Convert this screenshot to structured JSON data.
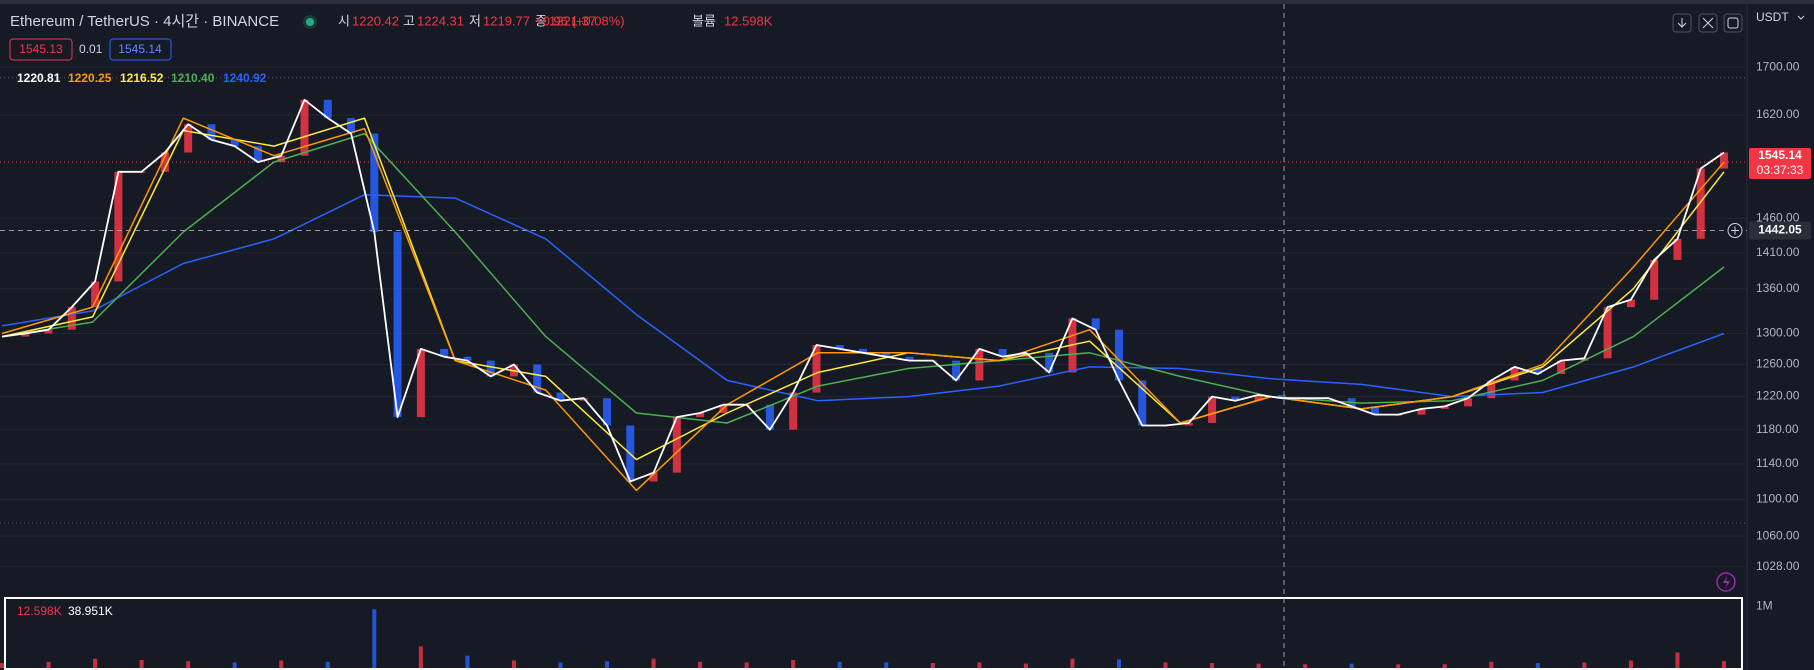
{
  "header": {
    "symbol": "Ethereum / TetherUS · 4시간 · BINANCE",
    "ohlc": [
      {
        "label": "시",
        "value": "1220.42"
      },
      {
        "label": "고",
        "value": "1224.31"
      },
      {
        "label": "저",
        "value": "1219.77"
      },
      {
        "label": "종",
        "value": "1221.37"
      }
    ],
    "change": "+0.96 (+0.08%)",
    "volume_label": "볼륨",
    "volume_value": "12.598K"
  },
  "order_buttons": {
    "sell": "1545.13",
    "spread": "0.01",
    "buy": "1545.14"
  },
  "currency": "USDT",
  "chart_data": [
    {
      "type": "line",
      "log_scale": true,
      "grid": true,
      "ylim": [
        998,
        1808
      ],
      "yticks": [
        {
          "value": 1700,
          "label": "1700.00"
        },
        {
          "value": 1620,
          "label": "1620.00"
        },
        {
          "value": 1460,
          "label": "1460.00"
        },
        {
          "value": 1410,
          "label": "1410.00"
        },
        {
          "value": 1360,
          "label": "1360.00"
        },
        {
          "value": 1300,
          "label": "1300.00"
        },
        {
          "value": 1260,
          "label": "1260.00"
        },
        {
          "value": 1220,
          "label": "1220.00"
        },
        {
          "value": 1180,
          "label": "1180.00"
        },
        {
          "value": 1140,
          "label": "1140.00"
        },
        {
          "value": 1100,
          "label": "1100.00"
        },
        {
          "value": 1060,
          "label": "1060.00"
        },
        {
          "value": 1028,
          "label": "1028.00"
        }
      ],
      "up_color": "#f23645",
      "down_color": "#2962ff",
      "series": [
        {
          "color": "#ffffff",
          "legend_value": "1220.81",
          "values": [
            1296,
            1300,
            1305,
            1335,
            1370,
            1530,
            1530,
            1560,
            1605,
            1580,
            1570,
            1545,
            1555,
            1645,
            1615,
            1590,
            1440,
            1195,
            1280,
            1270,
            1265,
            1245,
            1260,
            1225,
            1215,
            1218,
            1185,
            1120,
            1130,
            1195,
            1200,
            1210,
            1210,
            1180,
            1225,
            1285,
            1280,
            1275,
            1270,
            1265,
            1265,
            1240,
            1280,
            1270,
            1275,
            1250,
            1320,
            1305,
            1240,
            1185,
            1185,
            1188,
            1220,
            1215,
            1222,
            1218,
            1218,
            1218,
            1208,
            1198,
            1198,
            1205,
            1208,
            1218,
            1240,
            1257,
            1248,
            1265,
            1268,
            1335,
            1345,
            1400,
            1430,
            1535,
            1560
          ]
        },
        {
          "color": "#ff9800",
          "legend_value": "1220.25",
          "values": [
            1300,
            1335,
            1615,
            1555,
            1598,
            1265,
            1228,
            1110,
            1210,
            1275,
            1275,
            1265,
            1305,
            1188,
            1220,
            1205,
            1220,
            1260,
            1390,
            1545
          ]
        },
        {
          "color": "#ffeb3b",
          "legend_value": "1216.52",
          "values": [
            1296,
            1322,
            1595,
            1570,
            1615,
            1265,
            1245,
            1145,
            1200,
            1250,
            1275,
            1265,
            1290,
            1188,
            1220,
            1205,
            1220,
            1257,
            1360,
            1530
          ]
        },
        {
          "color": "#4caf50",
          "legend_value": "1210.40",
          "values": [
            1296,
            1315,
            1440,
            1545,
            1590,
            1440,
            1296,
            1200,
            1188,
            1233,
            1255,
            1265,
            1275,
            1245,
            1220,
            1212,
            1215,
            1240,
            1296,
            1390
          ]
        },
        {
          "color": "#2962ff",
          "legend_value": "1240.92",
          "values": [
            1310,
            1330,
            1395,
            1430,
            1495,
            1490,
            1430,
            1325,
            1240,
            1215,
            1220,
            1233,
            1257,
            1255,
            1242,
            1235,
            1220,
            1225,
            1257,
            1300
          ]
        }
      ],
      "level_lines": [
        1682,
        1074
      ],
      "last_price": 1545.14,
      "countdown": "03:37:33",
      "crosshair_price": 1442.05
    },
    {
      "type": "bar",
      "ylim": [
        0,
        1100000
      ],
      "yticks": [
        {
          "value": 1000000,
          "label": "1M"
        }
      ],
      "legend": [
        {
          "text": "12.598K",
          "color": "#f23645"
        },
        {
          "text": "38.951K",
          "color": "#ffffff"
        }
      ],
      "values": [
        80000,
        100000,
        150000,
        130000,
        110000,
        90000,
        120000,
        100000,
        950000,
        350000,
        200000,
        120000,
        90000,
        110000,
        150000,
        100000,
        90000,
        130000,
        100000,
        90000,
        80000,
        90000,
        70000,
        150000,
        140000,
        90000,
        80000,
        70000,
        60000,
        70000,
        60000,
        60000,
        100000,
        80000,
        90000,
        120000,
        250000,
        110000
      ]
    }
  ]
}
